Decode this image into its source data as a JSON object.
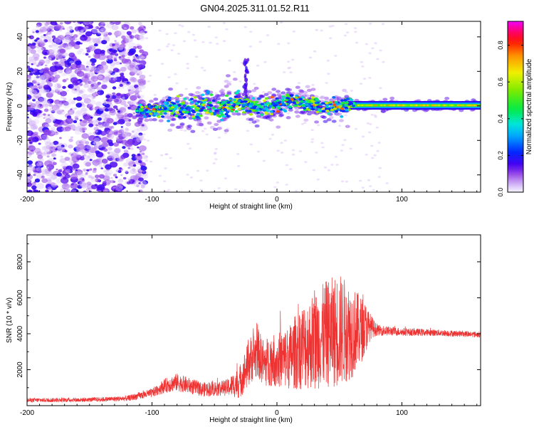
{
  "title": "GN04.2025.311.01.52.R11",
  "chart_data": [
    {
      "type": "heatmap",
      "name": "spectrogram",
      "xlabel": "Height of straight line (km)",
      "ylabel": "Frequency (Hz)",
      "xlim": [
        -200,
        163
      ],
      "ylim": [
        -50,
        49
      ],
      "xticks": [
        -200,
        -100,
        0,
        100
      ],
      "yticks": [
        -40,
        -20,
        0,
        20,
        40
      ],
      "colorbar": {
        "label": "Normalized spectral amplitude",
        "range": [
          0,
          0.93
        ],
        "ticks": [
          0.0,
          0.2,
          0.4,
          0.6,
          0.8
        ]
      },
      "features": {
        "noise_region_x": [
          -200,
          -105
        ],
        "signal_band_x": [
          -112,
          163
        ],
        "signal_center_freq_hz": 0,
        "spur_near_x": -25,
        "spur_peak_freq_hz": 27
      }
    },
    {
      "type": "line",
      "name": "snr",
      "xlabel": "Height of straight line (km)",
      "ylabel": "SNR (10 * v/v)",
      "xlim": [
        -200,
        163
      ],
      "ylim": [
        0,
        9500
      ],
      "xticks": [
        -200,
        -100,
        0,
        100
      ],
      "yticks": [
        2000,
        4000,
        6000,
        8000
      ],
      "color": "#ee3333",
      "series": [
        {
          "name": "SNR",
          "x": [
            -200,
            -150,
            -120,
            -100,
            -90,
            -80,
            -60,
            -40,
            -30,
            -25,
            -20,
            -15,
            -10,
            -5,
            0,
            10,
            20,
            30,
            40,
            50,
            60,
            70,
            75,
            80,
            100,
            130,
            163
          ],
          "mean": [
            300,
            330,
            400,
            700,
            1100,
            1300,
            900,
            1000,
            1300,
            2000,
            2700,
            2900,
            2300,
            2600,
            2500,
            2700,
            3300,
            3600,
            4000,
            4200,
            4100,
            4300,
            4400,
            4200,
            4100,
            4050,
            3950
          ],
          "amp": [
            120,
            120,
            150,
            250,
            400,
            500,
            400,
            450,
            900,
            1200,
            1400,
            1400,
            1300,
            1500,
            1500,
            1800,
            2400,
            2700,
            3000,
            3200,
            2600,
            1600,
            700,
            300,
            220,
            180,
            160
          ]
        }
      ]
    }
  ]
}
